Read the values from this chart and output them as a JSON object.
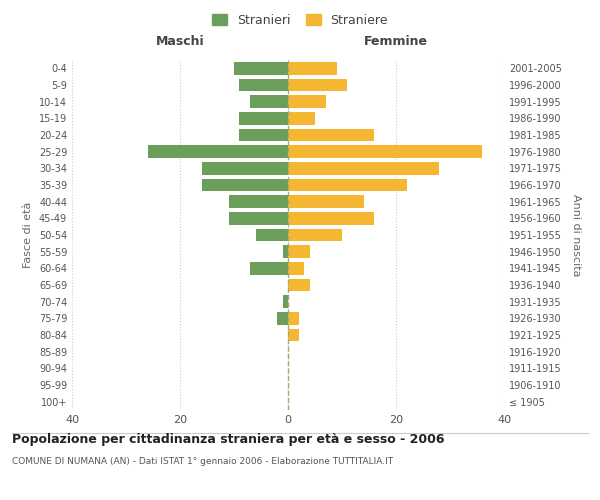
{
  "age_groups": [
    "100+",
    "95-99",
    "90-94",
    "85-89",
    "80-84",
    "75-79",
    "70-74",
    "65-69",
    "60-64",
    "55-59",
    "50-54",
    "45-49",
    "40-44",
    "35-39",
    "30-34",
    "25-29",
    "20-24",
    "15-19",
    "10-14",
    "5-9",
    "0-4"
  ],
  "birth_years": [
    "≤ 1905",
    "1906-1910",
    "1911-1915",
    "1916-1920",
    "1921-1925",
    "1926-1930",
    "1931-1935",
    "1936-1940",
    "1941-1945",
    "1946-1950",
    "1951-1955",
    "1956-1960",
    "1961-1965",
    "1966-1970",
    "1971-1975",
    "1976-1980",
    "1981-1985",
    "1986-1990",
    "1991-1995",
    "1996-2000",
    "2001-2005"
  ],
  "males": [
    0,
    0,
    0,
    0,
    0,
    2,
    1,
    0,
    7,
    1,
    6,
    11,
    11,
    16,
    16,
    26,
    9,
    9,
    7,
    9,
    10
  ],
  "females": [
    0,
    0,
    0,
    0,
    2,
    2,
    0,
    4,
    3,
    4,
    10,
    16,
    14,
    22,
    28,
    36,
    16,
    5,
    7,
    11,
    9
  ],
  "male_color": "#6a9e5a",
  "female_color": "#f5b731",
  "background_color": "#ffffff",
  "grid_color": "#cccccc",
  "title": "Popolazione per cittadinanza straniera per età e sesso - 2006",
  "subtitle": "COMUNE DI NUMANA (AN) - Dati ISTAT 1° gennaio 2006 - Elaborazione TUTTITALIA.IT",
  "xlabel_left": "Maschi",
  "xlabel_right": "Femmine",
  "ylabel_left": "Fasce di età",
  "ylabel_right": "Anni di nascita",
  "legend_male": "Stranieri",
  "legend_female": "Straniere",
  "xlim": 40
}
